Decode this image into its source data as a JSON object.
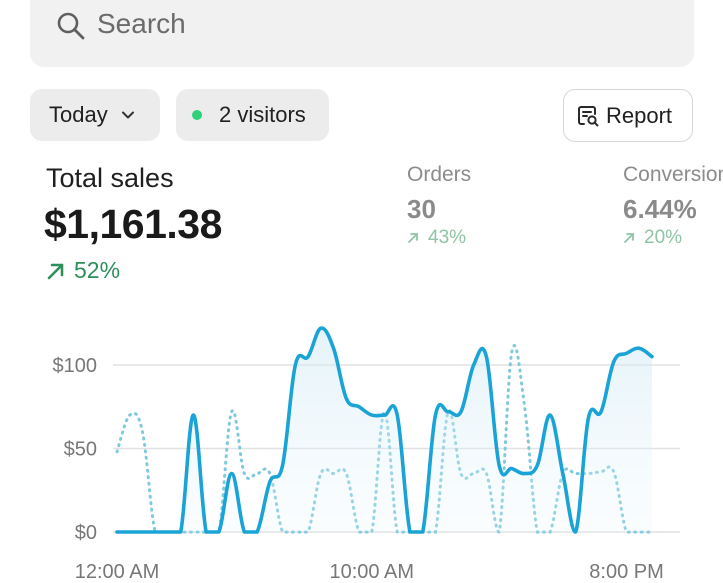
{
  "search": {
    "placeholder": "Search",
    "icon": "search-icon"
  },
  "filters": {
    "date_label": "Today",
    "visitors_label": "2 visitors",
    "visitors_dot_color": "#2fd27b"
  },
  "report_button": {
    "label": "Report",
    "icon": "report-icon"
  },
  "summary": {
    "total_sales_label": "Total sales",
    "total_sales_value": "$1,161.38",
    "total_sales_delta": "52%",
    "metrics": [
      {
        "label": "Orders",
        "value": "30",
        "delta": "43%"
      },
      {
        "label": "Conversion",
        "value": "6.44%",
        "delta": "20%"
      }
    ]
  },
  "colors": {
    "positive": "#2f8f5b",
    "positive_muted": "#8fc4a5",
    "current_series": "#1aa3d6",
    "comparison_series": "#7fc9dc",
    "grid": "#e2e2e2"
  },
  "chart_data": {
    "type": "line",
    "ylim": [
      0,
      130
    ],
    "y_ticks": [
      {
        "value": 0,
        "label": "$0"
      },
      {
        "value": 50,
        "label": "$50"
      },
      {
        "value": 100,
        "label": "$100"
      }
    ],
    "x_ticks": [
      {
        "hour": 0,
        "label": "12:00 AM"
      },
      {
        "hour": 10,
        "label": "10:00 AM"
      },
      {
        "hour": 20,
        "label": "8:00 PM"
      }
    ],
    "grid": true,
    "series": [
      {
        "style": "solid",
        "area": true,
        "x": [
          0,
          0.5,
          1,
          1.5,
          2,
          2.5,
          3,
          3.5,
          4,
          4.5,
          5,
          5.5,
          6,
          6.5,
          7,
          7.5,
          8,
          8.5,
          9,
          9.5,
          10,
          10.5,
          11,
          11.5,
          12,
          12.5,
          13,
          13.5,
          14,
          14.5,
          15,
          15.5,
          16,
          16.5,
          17,
          17.5,
          18,
          18.5,
          19,
          19.5,
          20,
          20.5,
          21
        ],
        "values": [
          0,
          0,
          0,
          0,
          0,
          0,
          70,
          0,
          0,
          35,
          0,
          0,
          30,
          40,
          100,
          105,
          122,
          110,
          80,
          75,
          70,
          70,
          70,
          0,
          0,
          70,
          72,
          72,
          100,
          105,
          40,
          38,
          35,
          40,
          70,
          35,
          0,
          68,
          72,
          102,
          107,
          110,
          105
        ]
      },
      {
        "style": "dotted",
        "area": false,
        "x": [
          0,
          0.5,
          1,
          1.5,
          2,
          2.5,
          3,
          3.5,
          4,
          4.5,
          5,
          5.5,
          6,
          6.5,
          7,
          7.5,
          8,
          8.5,
          9,
          9.5,
          10,
          10.5,
          11,
          11.5,
          12,
          12.5,
          13,
          13.5,
          14,
          14.5,
          15,
          15.5,
          16,
          16.5,
          17,
          17.5,
          18,
          18.5,
          19,
          19.5,
          20,
          20.5,
          21
        ],
        "values": [
          48,
          70,
          60,
          0,
          0,
          0,
          0,
          0,
          0,
          72,
          35,
          35,
          35,
          0,
          0,
          0,
          35,
          35,
          35,
          0,
          0,
          72,
          0,
          0,
          0,
          0,
          72,
          35,
          35,
          35,
          0,
          108,
          75,
          0,
          0,
          35,
          35,
          35,
          36,
          36,
          0,
          0,
          0
        ]
      }
    ]
  }
}
